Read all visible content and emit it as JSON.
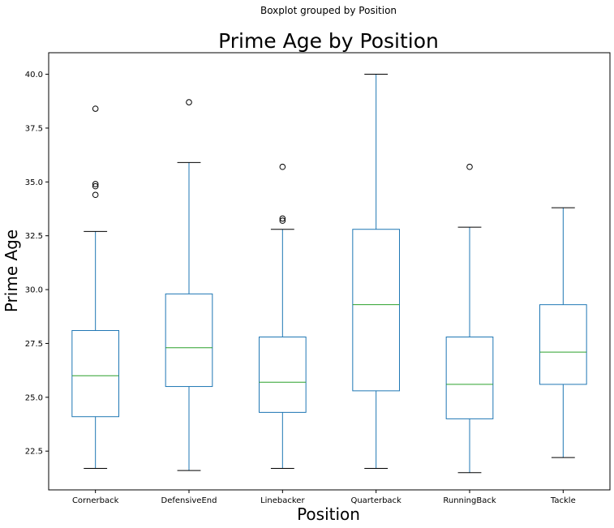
{
  "chart_data": {
    "type": "boxplot",
    "suptitle": "Boxplot grouped by Position",
    "title": "Prime Age by Position",
    "xlabel": "Position",
    "ylabel": "Prime Age",
    "ylim": [
      20.7,
      41.0
    ],
    "yticks": [
      22.5,
      25.0,
      27.5,
      30.0,
      32.5,
      35.0,
      37.5,
      40.0
    ],
    "ytick_labels": [
      "22.5",
      "25.0",
      "27.5",
      "30.0",
      "32.5",
      "35.0",
      "37.5",
      "40.0"
    ],
    "grid": false,
    "colors": {
      "box": "#1f77b4",
      "median": "#2ca02c",
      "whisker_cap": "#000000",
      "flier": "#000000"
    },
    "categories": [
      "Cornerback",
      "DefensiveEnd",
      "Linebacker",
      "Quarterback",
      "RunningBack",
      "Tackle"
    ],
    "boxes": [
      {
        "category": "Cornerback",
        "whislo": 21.7,
        "q1": 24.1,
        "med": 26.0,
        "q3": 28.1,
        "whishi": 32.7,
        "fliers": [
          38.4,
          34.9,
          34.8,
          34.4
        ]
      },
      {
        "category": "DefensiveEnd",
        "whislo": 21.6,
        "q1": 25.5,
        "med": 27.3,
        "q3": 29.8,
        "whishi": 35.9,
        "fliers": [
          38.7
        ]
      },
      {
        "category": "Linebacker",
        "whislo": 21.7,
        "q1": 24.3,
        "med": 25.7,
        "q3": 27.8,
        "whishi": 32.8,
        "fliers": [
          35.7,
          33.3,
          33.2
        ]
      },
      {
        "category": "Quarterback",
        "whislo": 21.7,
        "q1": 25.3,
        "med": 29.3,
        "q3": 32.8,
        "whishi": 40.0,
        "fliers": []
      },
      {
        "category": "RunningBack",
        "whislo": 21.5,
        "q1": 24.0,
        "med": 25.6,
        "q3": 27.8,
        "whishi": 32.9,
        "fliers": [
          35.7
        ]
      },
      {
        "category": "Tackle",
        "whislo": 22.2,
        "q1": 25.6,
        "med": 27.1,
        "q3": 29.3,
        "whishi": 33.8,
        "fliers": []
      }
    ]
  }
}
